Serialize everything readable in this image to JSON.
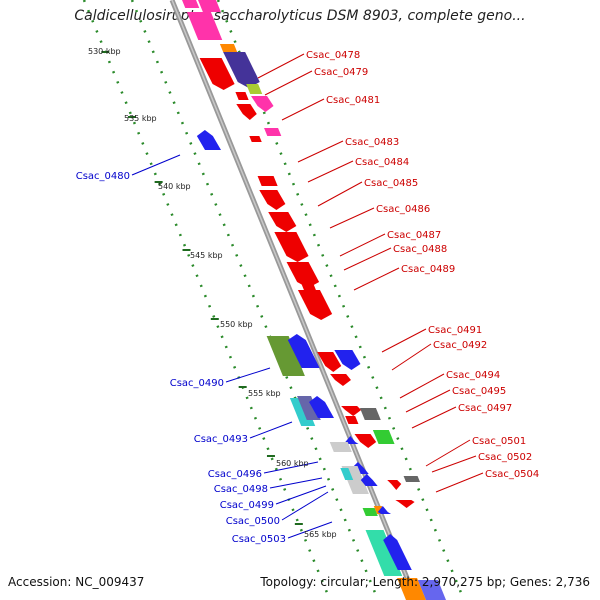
{
  "title": "Caldicellulosiruptor saccharolyticus DSM 8903, complete geno...",
  "footer": {
    "accession": "Accession: NC_009437",
    "summary": "Topology: circular; Length: 2,970,275 bp; Genes: 2,736"
  },
  "scale_labels": [
    "530 kbp",
    "535 kbp",
    "540 kbp",
    "545 kbp",
    "550 kbp",
    "555 kbp",
    "560 kbp",
    "565 kbp"
  ],
  "colors": {
    "forward_label": "#cc0000",
    "reverse_label": "#0000cc",
    "backbone": "#999999",
    "tick": "#2a8a2a"
  },
  "forward_gene_labels": [
    "Csac_0478",
    "Csac_0479",
    "Csac_0481",
    "Csac_0483",
    "Csac_0484",
    "Csac_0485",
    "Csac_0486",
    "Csac_0487",
    "Csac_0488",
    "Csac_0489",
    "Csac_0491",
    "Csac_0492",
    "Csac_0494",
    "Csac_0495",
    "Csac_0497",
    "Csac_0501",
    "Csac_0502",
    "Csac_0504"
  ],
  "reverse_gene_labels": [
    "Csac_0480",
    "Csac_0490",
    "Csac_0493",
    "Csac_0496",
    "Csac_0498",
    "Csac_0499",
    "Csac_0500",
    "Csac_0503"
  ]
}
